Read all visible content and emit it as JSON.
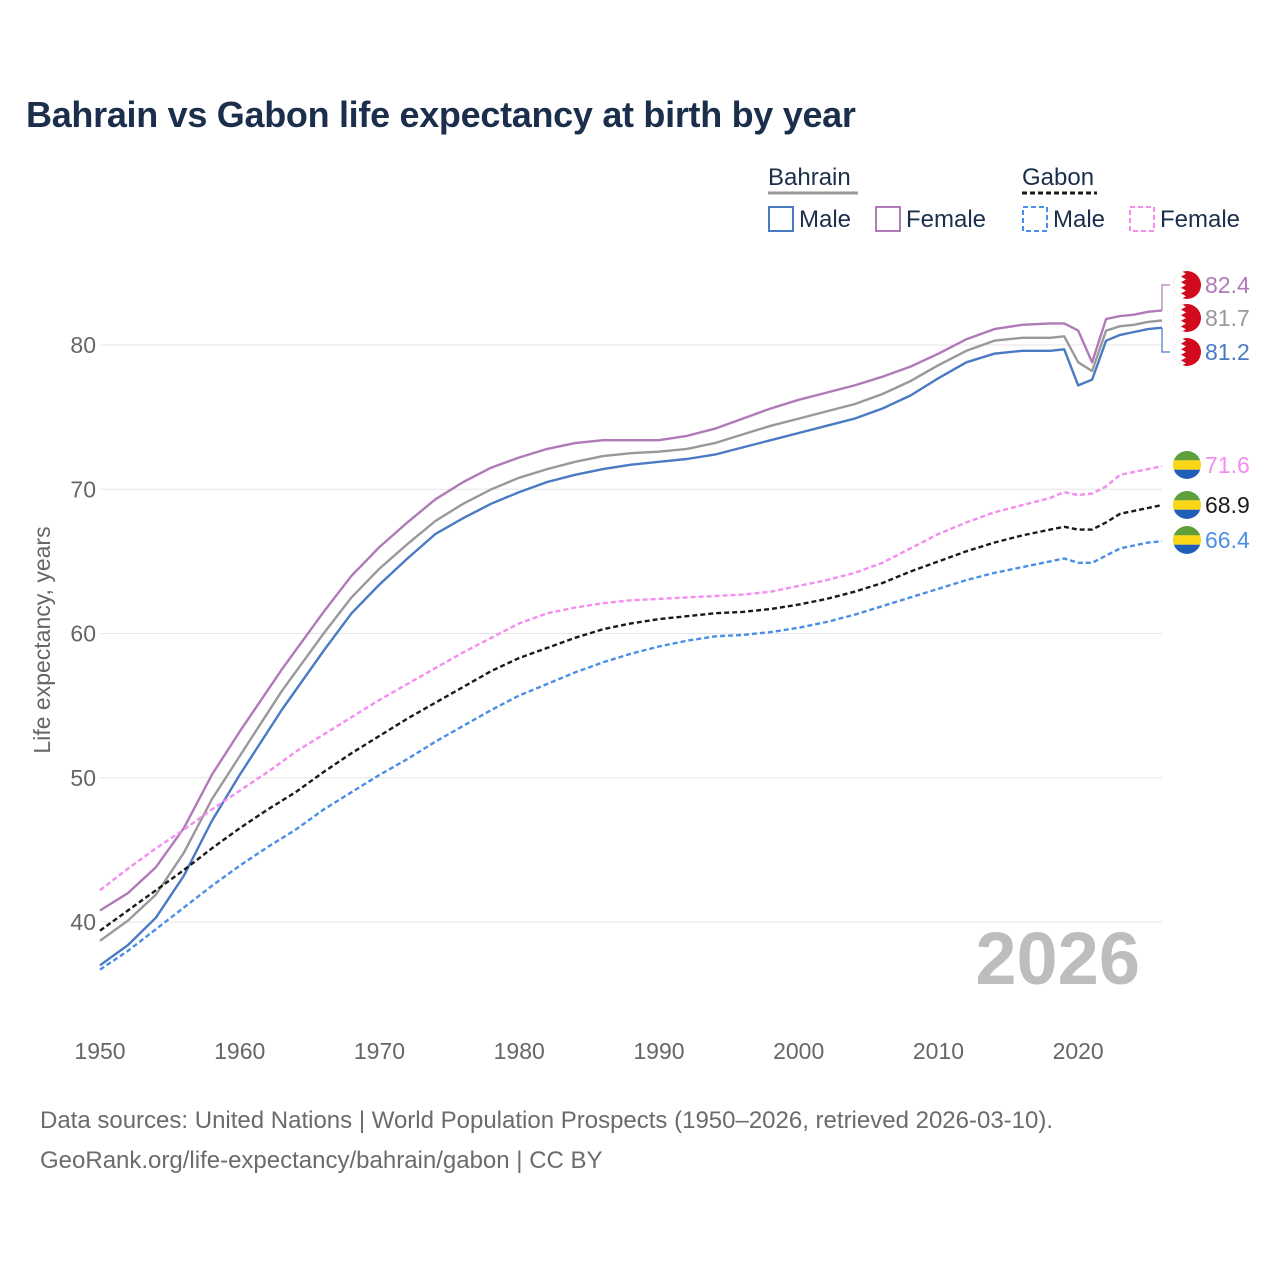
{
  "title": "Bahrain vs Gabon life expectancy at birth by year",
  "source_line1": "Data sources: United Nations | World Population Prospects (1950–2026, retrieved 2026-03-10).",
  "source_line2": "GeoRank.org/life-expectancy/bahrain/gabon | CC BY",
  "year_label": "2026",
  "legend": {
    "group1": "Bahrain",
    "group2": "Gabon",
    "male": "Male",
    "female": "Female"
  },
  "colors": {
    "bahrain_total": "#999999",
    "bahrain_male": "#4a7ac4",
    "bahrain_female": "#b07ab8",
    "gabon_total": "#1a1a1a",
    "gabon_male": "#4a8ee8",
    "gabon_female": "#f58cf0",
    "grid": "#e6e6e6",
    "axis_text": "#666666",
    "title": "#1b2e4b",
    "flag_bahrain_red": "#d20a1e",
    "flag_gabon_green": "#5e9e3b",
    "flag_gabon_yellow": "#f9d616",
    "flag_gabon_blue": "#1f5fb8"
  },
  "chart_data": {
    "type": "line",
    "title": "Bahrain vs Gabon life expectancy at birth by year",
    "xlabel": "",
    "ylabel": "Life expectancy, years",
    "xlim": [
      1950,
      2026
    ],
    "ylim": [
      33,
      86
    ],
    "x_ticks": [
      1950,
      1960,
      1970,
      1980,
      1990,
      2000,
      2010,
      2020
    ],
    "y_ticks": [
      40,
      50,
      60,
      70,
      80
    ],
    "legend_position": "top-right",
    "grid": true,
    "series": [
      {
        "name": "Bahrain Female",
        "country": "Bahrain",
        "sex": "Female",
        "dash": false,
        "color_key": "bahrain_female",
        "end_label": "82.4",
        "points": [
          [
            1950,
            40.8
          ],
          [
            1952,
            42.0
          ],
          [
            1954,
            43.8
          ],
          [
            1956,
            46.5
          ],
          [
            1958,
            50.2
          ],
          [
            1960,
            53.2
          ],
          [
            1963,
            57.5
          ],
          [
            1966,
            61.5
          ],
          [
            1968,
            64.0
          ],
          [
            1970,
            66.0
          ],
          [
            1972,
            67.7
          ],
          [
            1974,
            69.3
          ],
          [
            1976,
            70.5
          ],
          [
            1978,
            71.5
          ],
          [
            1980,
            72.2
          ],
          [
            1982,
            72.8
          ],
          [
            1984,
            73.2
          ],
          [
            1986,
            73.4
          ],
          [
            1988,
            73.4
          ],
          [
            1990,
            73.4
          ],
          [
            1992,
            73.7
          ],
          [
            1994,
            74.2
          ],
          [
            1996,
            74.9
          ],
          [
            1998,
            75.6
          ],
          [
            2000,
            76.2
          ],
          [
            2002,
            76.7
          ],
          [
            2004,
            77.2
          ],
          [
            2006,
            77.8
          ],
          [
            2008,
            78.5
          ],
          [
            2010,
            79.4
          ],
          [
            2012,
            80.4
          ],
          [
            2014,
            81.1
          ],
          [
            2016,
            81.4
          ],
          [
            2018,
            81.5
          ],
          [
            2019,
            81.5
          ],
          [
            2020,
            81.0
          ],
          [
            2021,
            78.8
          ],
          [
            2022,
            81.8
          ],
          [
            2023,
            82.0
          ],
          [
            2024,
            82.1
          ],
          [
            2025,
            82.3
          ],
          [
            2026,
            82.4
          ]
        ]
      },
      {
        "name": "Bahrain Total",
        "country": "Bahrain",
        "sex": "Total",
        "dash": false,
        "color_key": "bahrain_total",
        "end_label": "81.7",
        "points": [
          [
            1950,
            38.7
          ],
          [
            1952,
            40.1
          ],
          [
            1954,
            41.9
          ],
          [
            1956,
            44.8
          ],
          [
            1958,
            48.5
          ],
          [
            1960,
            51.5
          ],
          [
            1963,
            56.0
          ],
          [
            1966,
            60.0
          ],
          [
            1968,
            62.5
          ],
          [
            1970,
            64.5
          ],
          [
            1972,
            66.2
          ],
          [
            1974,
            67.8
          ],
          [
            1976,
            69.0
          ],
          [
            1978,
            70.0
          ],
          [
            1980,
            70.8
          ],
          [
            1982,
            71.4
          ],
          [
            1984,
            71.9
          ],
          [
            1986,
            72.3
          ],
          [
            1988,
            72.5
          ],
          [
            1990,
            72.6
          ],
          [
            1992,
            72.8
          ],
          [
            1994,
            73.2
          ],
          [
            1996,
            73.8
          ],
          [
            1998,
            74.4
          ],
          [
            2000,
            74.9
          ],
          [
            2002,
            75.4
          ],
          [
            2004,
            75.9
          ],
          [
            2006,
            76.6
          ],
          [
            2008,
            77.5
          ],
          [
            2010,
            78.6
          ],
          [
            2012,
            79.6
          ],
          [
            2014,
            80.3
          ],
          [
            2016,
            80.5
          ],
          [
            2018,
            80.5
          ],
          [
            2019,
            80.6
          ],
          [
            2020,
            78.8
          ],
          [
            2021,
            78.2
          ],
          [
            2022,
            81.0
          ],
          [
            2023,
            81.3
          ],
          [
            2024,
            81.4
          ],
          [
            2025,
            81.6
          ],
          [
            2026,
            81.7
          ]
        ]
      },
      {
        "name": "Bahrain Male",
        "country": "Bahrain",
        "sex": "Male",
        "dash": false,
        "color_key": "bahrain_male",
        "end_label": "81.2",
        "points": [
          [
            1950,
            37.0
          ],
          [
            1952,
            38.4
          ],
          [
            1954,
            40.3
          ],
          [
            1956,
            43.2
          ],
          [
            1958,
            47.0
          ],
          [
            1960,
            50.2
          ],
          [
            1963,
            54.7
          ],
          [
            1966,
            58.8
          ],
          [
            1968,
            61.4
          ],
          [
            1970,
            63.4
          ],
          [
            1972,
            65.2
          ],
          [
            1974,
            66.9
          ],
          [
            1976,
            68.0
          ],
          [
            1978,
            69.0
          ],
          [
            1980,
            69.8
          ],
          [
            1982,
            70.5
          ],
          [
            1984,
            71.0
          ],
          [
            1986,
            71.4
          ],
          [
            1988,
            71.7
          ],
          [
            1990,
            71.9
          ],
          [
            1992,
            72.1
          ],
          [
            1994,
            72.4
          ],
          [
            1996,
            72.9
          ],
          [
            1998,
            73.4
          ],
          [
            2000,
            73.9
          ],
          [
            2002,
            74.4
          ],
          [
            2004,
            74.9
          ],
          [
            2006,
            75.6
          ],
          [
            2008,
            76.5
          ],
          [
            2010,
            77.7
          ],
          [
            2012,
            78.8
          ],
          [
            2014,
            79.4
          ],
          [
            2016,
            79.6
          ],
          [
            2018,
            79.6
          ],
          [
            2019,
            79.7
          ],
          [
            2020,
            77.2
          ],
          [
            2021,
            77.6
          ],
          [
            2022,
            80.3
          ],
          [
            2023,
            80.7
          ],
          [
            2024,
            80.9
          ],
          [
            2025,
            81.1
          ],
          [
            2026,
            81.2
          ]
        ]
      },
      {
        "name": "Gabon Female",
        "country": "Gabon",
        "sex": "Female",
        "dash": true,
        "color_key": "gabon_female",
        "end_label": "71.6",
        "points": [
          [
            1950,
            42.2
          ],
          [
            1952,
            43.7
          ],
          [
            1954,
            45.1
          ],
          [
            1956,
            46.4
          ],
          [
            1958,
            47.8
          ],
          [
            1960,
            49.1
          ],
          [
            1962,
            50.4
          ],
          [
            1964,
            51.8
          ],
          [
            1966,
            53.0
          ],
          [
            1968,
            54.2
          ],
          [
            1970,
            55.4
          ],
          [
            1972,
            56.5
          ],
          [
            1974,
            57.6
          ],
          [
            1976,
            58.7
          ],
          [
            1978,
            59.7
          ],
          [
            1980,
            60.7
          ],
          [
            1982,
            61.4
          ],
          [
            1984,
            61.8
          ],
          [
            1986,
            62.1
          ],
          [
            1988,
            62.3
          ],
          [
            1990,
            62.4
          ],
          [
            1992,
            62.5
          ],
          [
            1994,
            62.6
          ],
          [
            1996,
            62.7
          ],
          [
            1998,
            62.9
          ],
          [
            2000,
            63.3
          ],
          [
            2002,
            63.7
          ],
          [
            2004,
            64.2
          ],
          [
            2006,
            64.9
          ],
          [
            2008,
            65.9
          ],
          [
            2010,
            66.9
          ],
          [
            2012,
            67.7
          ],
          [
            2014,
            68.4
          ],
          [
            2016,
            68.9
          ],
          [
            2018,
            69.4
          ],
          [
            2019,
            69.8
          ],
          [
            2020,
            69.6
          ],
          [
            2021,
            69.7
          ],
          [
            2022,
            70.2
          ],
          [
            2023,
            71.0
          ],
          [
            2024,
            71.2
          ],
          [
            2025,
            71.4
          ],
          [
            2026,
            71.6
          ]
        ]
      },
      {
        "name": "Gabon Total",
        "country": "Gabon",
        "sex": "Total",
        "dash": true,
        "color_key": "gabon_total",
        "end_label": "68.9",
        "points": [
          [
            1950,
            39.4
          ],
          [
            1952,
            40.8
          ],
          [
            1954,
            42.2
          ],
          [
            1956,
            43.6
          ],
          [
            1958,
            45.1
          ],
          [
            1960,
            46.5
          ],
          [
            1962,
            47.8
          ],
          [
            1964,
            49.0
          ],
          [
            1966,
            50.4
          ],
          [
            1968,
            51.7
          ],
          [
            1970,
            52.9
          ],
          [
            1972,
            54.1
          ],
          [
            1974,
            55.2
          ],
          [
            1976,
            56.3
          ],
          [
            1978,
            57.4
          ],
          [
            1980,
            58.3
          ],
          [
            1982,
            59.0
          ],
          [
            1984,
            59.7
          ],
          [
            1986,
            60.3
          ],
          [
            1988,
            60.7
          ],
          [
            1990,
            61.0
          ],
          [
            1992,
            61.2
          ],
          [
            1994,
            61.4
          ],
          [
            1996,
            61.5
          ],
          [
            1998,
            61.7
          ],
          [
            2000,
            62.0
          ],
          [
            2002,
            62.4
          ],
          [
            2004,
            62.9
          ],
          [
            2006,
            63.5
          ],
          [
            2008,
            64.3
          ],
          [
            2010,
            65.0
          ],
          [
            2012,
            65.7
          ],
          [
            2014,
            66.3
          ],
          [
            2016,
            66.8
          ],
          [
            2018,
            67.2
          ],
          [
            2019,
            67.4
          ],
          [
            2020,
            67.2
          ],
          [
            2021,
            67.2
          ],
          [
            2022,
            67.7
          ],
          [
            2023,
            68.3
          ],
          [
            2024,
            68.5
          ],
          [
            2025,
            68.7
          ],
          [
            2026,
            68.9
          ]
        ]
      },
      {
        "name": "Gabon Male",
        "country": "Gabon",
        "sex": "Male",
        "dash": true,
        "color_key": "gabon_male",
        "end_label": "66.4",
        "points": [
          [
            1950,
            36.7
          ],
          [
            1952,
            38.0
          ],
          [
            1954,
            39.5
          ],
          [
            1956,
            41.0
          ],
          [
            1958,
            42.5
          ],
          [
            1960,
            43.9
          ],
          [
            1962,
            45.2
          ],
          [
            1964,
            46.4
          ],
          [
            1966,
            47.8
          ],
          [
            1968,
            49.0
          ],
          [
            1970,
            50.2
          ],
          [
            1972,
            51.3
          ],
          [
            1974,
            52.5
          ],
          [
            1976,
            53.6
          ],
          [
            1978,
            54.7
          ],
          [
            1980,
            55.7
          ],
          [
            1982,
            56.5
          ],
          [
            1984,
            57.3
          ],
          [
            1986,
            58.0
          ],
          [
            1988,
            58.6
          ],
          [
            1990,
            59.1
          ],
          [
            1992,
            59.5
          ],
          [
            1994,
            59.8
          ],
          [
            1996,
            59.9
          ],
          [
            1998,
            60.1
          ],
          [
            2000,
            60.4
          ],
          [
            2002,
            60.8
          ],
          [
            2004,
            61.3
          ],
          [
            2006,
            61.9
          ],
          [
            2008,
            62.5
          ],
          [
            2010,
            63.1
          ],
          [
            2012,
            63.7
          ],
          [
            2014,
            64.2
          ],
          [
            2016,
            64.6
          ],
          [
            2018,
            65.0
          ],
          [
            2019,
            65.2
          ],
          [
            2020,
            64.9
          ],
          [
            2021,
            64.9
          ],
          [
            2022,
            65.4
          ],
          [
            2023,
            65.9
          ],
          [
            2024,
            66.1
          ],
          [
            2025,
            66.3
          ],
          [
            2026,
            66.4
          ]
        ]
      }
    ]
  }
}
